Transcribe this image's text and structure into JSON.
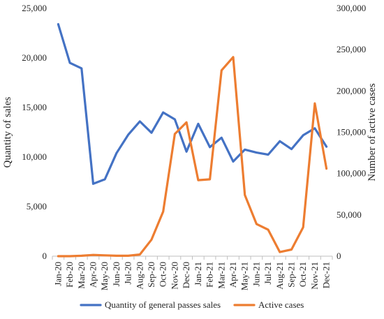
{
  "chart_data": {
    "type": "line",
    "title": "",
    "categories": [
      "Jan-20",
      "Feb-20",
      "Mar-20",
      "Apr-20",
      "May-20",
      "Jun-20",
      "Jul-20",
      "Aug-20",
      "Sep-20",
      "Oct-20",
      "Nov-20",
      "Dec-20",
      "Jan-21",
      "Feb-21",
      "Mar-21",
      "Apr-21",
      "May-21",
      "Jun-21",
      "Jul-21",
      "Aug-21",
      "Sep-21",
      "Oct-21",
      "Nov-21",
      "Dec-21"
    ],
    "y_left": {
      "label": "Quantity of sales",
      "lim": [
        0,
        25000
      ],
      "ticks": [
        0,
        5000,
        10000,
        15000,
        20000,
        25000
      ],
      "tick_labels": [
        "0",
        "5,000",
        "10,000",
        "15,000",
        "20,000",
        "25,000"
      ]
    },
    "y_right": {
      "label": "Number of active cases",
      "lim": [
        0,
        300000
      ],
      "ticks": [
        0,
        50000,
        100000,
        150000,
        200000,
        250000,
        300000
      ],
      "tick_labels": [
        "0",
        "50,000",
        "100,000",
        "150,000",
        "200,000",
        "250,000",
        "300,000"
      ]
    },
    "series": [
      {
        "name": "Quantity of general passes sales",
        "axis": "left",
        "color": "#4472C4",
        "values": [
          23400,
          19500,
          18950,
          7300,
          7750,
          10400,
          12250,
          13600,
          12450,
          14500,
          13800,
          10550,
          13350,
          11000,
          11950,
          9550,
          10750,
          10450,
          10250,
          11600,
          10800,
          12200,
          12900,
          11050
        ]
      },
      {
        "name": "Active cases",
        "axis": "right",
        "color": "#ED7D31",
        "values": [
          0,
          0,
          500,
          1500,
          1000,
          500,
          500,
          2000,
          20000,
          54000,
          148000,
          162000,
          92000,
          93000,
          225000,
          241000,
          74000,
          39000,
          32000,
          5000,
          8000,
          35000,
          185000,
          106000
        ]
      }
    ],
    "grid": false,
    "legend_position": "bottom"
  }
}
